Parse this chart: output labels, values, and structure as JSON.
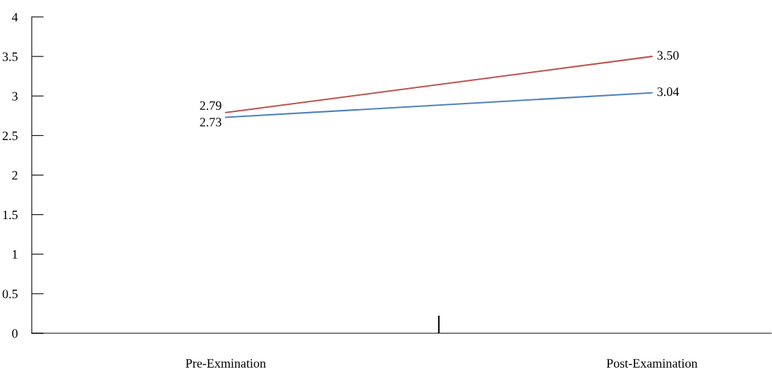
{
  "chart_data": {
    "type": "line",
    "categories": [
      "Pre-Exmination",
      "Post-Examination"
    ],
    "series": [
      {
        "color": "#c0504d",
        "values": [
          2.79,
          3.5
        ],
        "value_labels": [
          "2.79",
          "3.50"
        ]
      },
      {
        "color": "#4f81bd",
        "values": [
          2.73,
          3.04
        ],
        "value_labels": [
          "2.73",
          "3.04"
        ]
      }
    ],
    "ylim": [
      0,
      4
    ],
    "yticks": [
      0,
      0.5,
      1,
      1.5,
      2,
      2.5,
      3,
      3.5,
      4
    ],
    "grid": false,
    "marker": "none",
    "line_style": "solid"
  }
}
